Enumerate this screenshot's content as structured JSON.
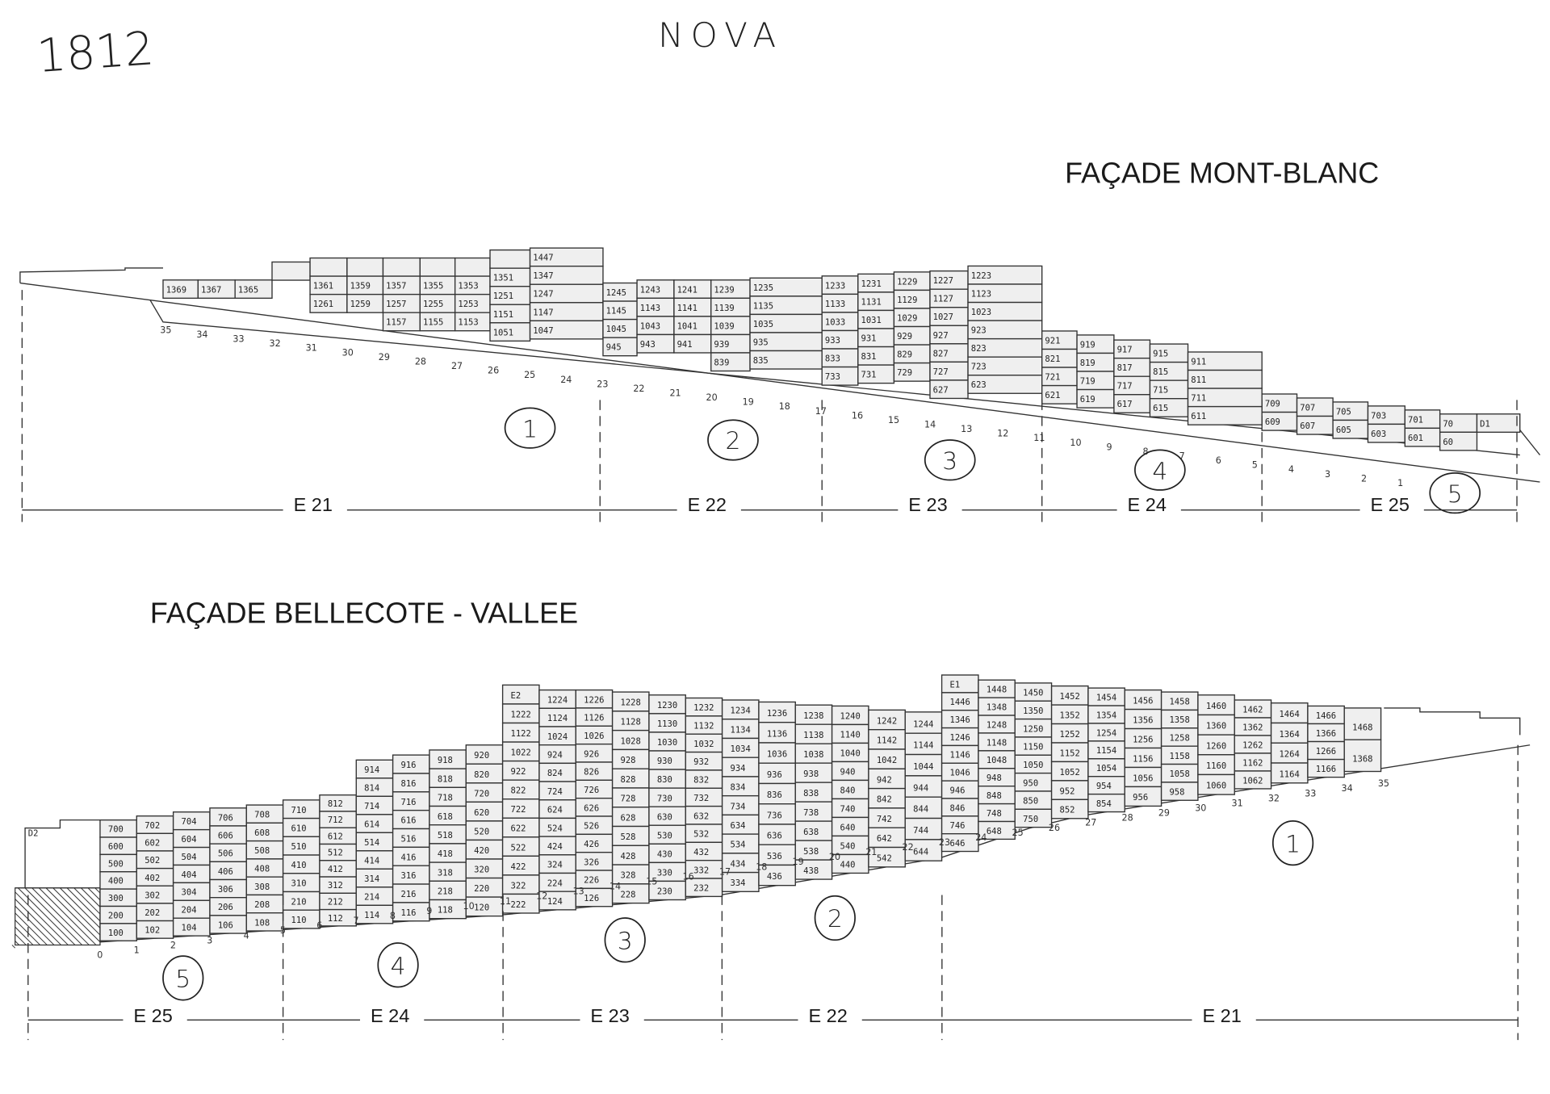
{
  "header": {
    "sheet_number": "1812",
    "project": "NOVA"
  },
  "facade_top": {
    "title": "FAÇADE MONT-BLANC",
    "sections": [
      "E 21",
      "E 22",
      "E 23",
      "E 24",
      "E 25"
    ],
    "zones": [
      "1",
      "2",
      "3",
      "4",
      "5"
    ],
    "slope_ticks": [
      "35",
      "34",
      "33",
      "32",
      "31",
      "30",
      "29",
      "28",
      "27",
      "26",
      "25",
      "24",
      "23",
      "22",
      "21",
      "20",
      "19",
      "18",
      "17",
      "16",
      "15",
      "14",
      "13",
      "12",
      "11",
      "10",
      "9",
      "8",
      "7",
      "6",
      "5",
      "4",
      "3",
      "2",
      "1"
    ],
    "columns": [
      [
        "1369"
      ],
      [
        "1367"
      ],
      [
        "1365"
      ],
      [
        ""
      ],
      [
        "",
        "1361",
        "1261"
      ],
      [
        "",
        "1359",
        "1259"
      ],
      [
        "",
        "1357",
        "1257",
        "1157"
      ],
      [
        "",
        "1355",
        "1255",
        "1155"
      ],
      [
        "",
        "1353",
        "1253",
        "1153"
      ],
      [
        "",
        "1351",
        "1251",
        "1151",
        "1051"
      ],
      [
        "1447",
        "1347",
        "1247",
        "1147",
        "1047"
      ],
      [
        "1245",
        "1145",
        "1045",
        "945"
      ],
      [
        "1243",
        "1143",
        "1043",
        "943"
      ],
      [
        "1241",
        "1141",
        "1041",
        "941"
      ],
      [
        "1239",
        "1139",
        "1039",
        "939",
        "839"
      ],
      [
        "1235",
        "1135",
        "1035",
        "935",
        "835"
      ],
      [
        "1233",
        "1133",
        "1033",
        "933",
        "833",
        "733"
      ],
      [
        "1231",
        "1131",
        "1031",
        "931",
        "831",
        "731"
      ],
      [
        "1229",
        "1129",
        "1029",
        "929",
        "829",
        "729"
      ],
      [
        "1227",
        "1127",
        "1027",
        "927",
        "827",
        "727",
        "627"
      ],
      [
        "1223",
        "1123",
        "1023",
        "923",
        "823",
        "723",
        "623"
      ],
      [
        "921",
        "821",
        "721",
        "621"
      ],
      [
        "919",
        "819",
        "719",
        "619"
      ],
      [
        "917",
        "817",
        "717",
        "617"
      ],
      [
        "915",
        "815",
        "715",
        "615"
      ],
      [
        "911",
        "811",
        "711",
        "611"
      ],
      [
        "709",
        "609"
      ],
      [
        "707",
        "607"
      ],
      [
        "705",
        "605"
      ],
      [
        "703",
        "603"
      ],
      [
        "701",
        "601"
      ],
      [
        "70",
        "60"
      ],
      [
        "D1"
      ]
    ]
  },
  "facade_bottom": {
    "title": "FAÇADE BELLECOTE - VALLEE",
    "sections": [
      "E 25",
      "E 24",
      "E 23",
      "E 22",
      "E 21"
    ],
    "zones": [
      "5",
      "4",
      "3",
      "2",
      "1"
    ],
    "left_block_label": "D2",
    "slope_ticks": [
      "0",
      "1",
      "2",
      "3",
      "4",
      "5",
      "6",
      "7",
      "8",
      "9",
      "10",
      "11",
      "12",
      "13",
      "14",
      "15",
      "16",
      "17",
      "18",
      "19",
      "20",
      "21",
      "22",
      "23",
      "24",
      "25",
      "26",
      "27",
      "28",
      "29",
      "30",
      "31",
      "32",
      "33",
      "34",
      "35"
    ],
    "columns": [
      [
        "700",
        "600",
        "500",
        "400",
        "300",
        "200",
        "100"
      ],
      [
        "702",
        "602",
        "502",
        "402",
        "302",
        "202",
        "102"
      ],
      [
        "704",
        "604",
        "504",
        "404",
        "304",
        "204",
        "104"
      ],
      [
        "706",
        "606",
        "506",
        "406",
        "306",
        "206",
        "106"
      ],
      [
        "708",
        "608",
        "508",
        "408",
        "308",
        "208",
        "108"
      ],
      [
        "710",
        "610",
        "510",
        "410",
        "310",
        "210",
        "110"
      ],
      [
        "812",
        "712",
        "612",
        "512",
        "412",
        "312",
        "212",
        "112"
      ],
      [
        "914",
        "814",
        "714",
        "614",
        "514",
        "414",
        "314",
        "214",
        "114"
      ],
      [
        "916",
        "816",
        "716",
        "616",
        "516",
        "416",
        "316",
        "216",
        "116"
      ],
      [
        "918",
        "818",
        "718",
        "618",
        "518",
        "418",
        "318",
        "218",
        "118"
      ],
      [
        "920",
        "820",
        "720",
        "620",
        "520",
        "420",
        "320",
        "220",
        "120"
      ],
      [
        "E2",
        "1222",
        "1122",
        "1022",
        "922",
        "822",
        "722",
        "622",
        "522",
        "422",
        "322",
        "222"
      ],
      [
        "1224",
        "1124",
        "1024",
        "924",
        "824",
        "724",
        "624",
        "524",
        "424",
        "324",
        "224",
        "124"
      ],
      [
        "1226",
        "1126",
        "1026",
        "926",
        "826",
        "726",
        "626",
        "526",
        "426",
        "326",
        "226",
        "126"
      ],
      [
        "1228",
        "1128",
        "1028",
        "928",
        "828",
        "728",
        "628",
        "528",
        "428",
        "328",
        "228"
      ],
      [
        "1230",
        "1130",
        "1030",
        "930",
        "830",
        "730",
        "630",
        "530",
        "430",
        "330",
        "230"
      ],
      [
        "1232",
        "1132",
        "1032",
        "932",
        "832",
        "732",
        "632",
        "532",
        "432",
        "332",
        "232"
      ],
      [
        "1234",
        "1134",
        "1034",
        "934",
        "834",
        "734",
        "634",
        "534",
        "434",
        "334"
      ],
      [
        "1236",
        "1136",
        "1036",
        "936",
        "836",
        "736",
        "636",
        "536",
        "436"
      ],
      [
        "1238",
        "1138",
        "1038",
        "938",
        "838",
        "738",
        "638",
        "538",
        "438"
      ],
      [
        "1240",
        "1140",
        "1040",
        "940",
        "840",
        "740",
        "640",
        "540",
        "440"
      ],
      [
        "1242",
        "1142",
        "1042",
        "942",
        "842",
        "742",
        "642",
        "542"
      ],
      [
        "1244",
        "1144",
        "1044",
        "944",
        "844",
        "744",
        "644"
      ],
      [
        "E1",
        "1446",
        "1346",
        "1246",
        "1146",
        "1046",
        "946",
        "846",
        "746",
        "646"
      ],
      [
        "1448",
        "1348",
        "1248",
        "1148",
        "1048",
        "948",
        "848",
        "748",
        "648"
      ],
      [
        "1450",
        "1350",
        "1250",
        "1150",
        "1050",
        "950",
        "850",
        "750"
      ],
      [
        "1452",
        "1352",
        "1252",
        "1152",
        "1052",
        "952",
        "852"
      ],
      [
        "1454",
        "1354",
        "1254",
        "1154",
        "1054",
        "954",
        "854"
      ],
      [
        "1456",
        "1356",
        "1256",
        "1156",
        "1056",
        "956"
      ],
      [
        "1458",
        "1358",
        "1258",
        "1158",
        "1058",
        "958"
      ],
      [
        "1460",
        "1360",
        "1260",
        "1160",
        "1060"
      ],
      [
        "1462",
        "1362",
        "1262",
        "1162",
        "1062"
      ],
      [
        "1464",
        "1364",
        "1264",
        "1164"
      ],
      [
        "1466",
        "1366",
        "1266",
        "1166"
      ],
      [
        "1468",
        "1368"
      ]
    ]
  }
}
